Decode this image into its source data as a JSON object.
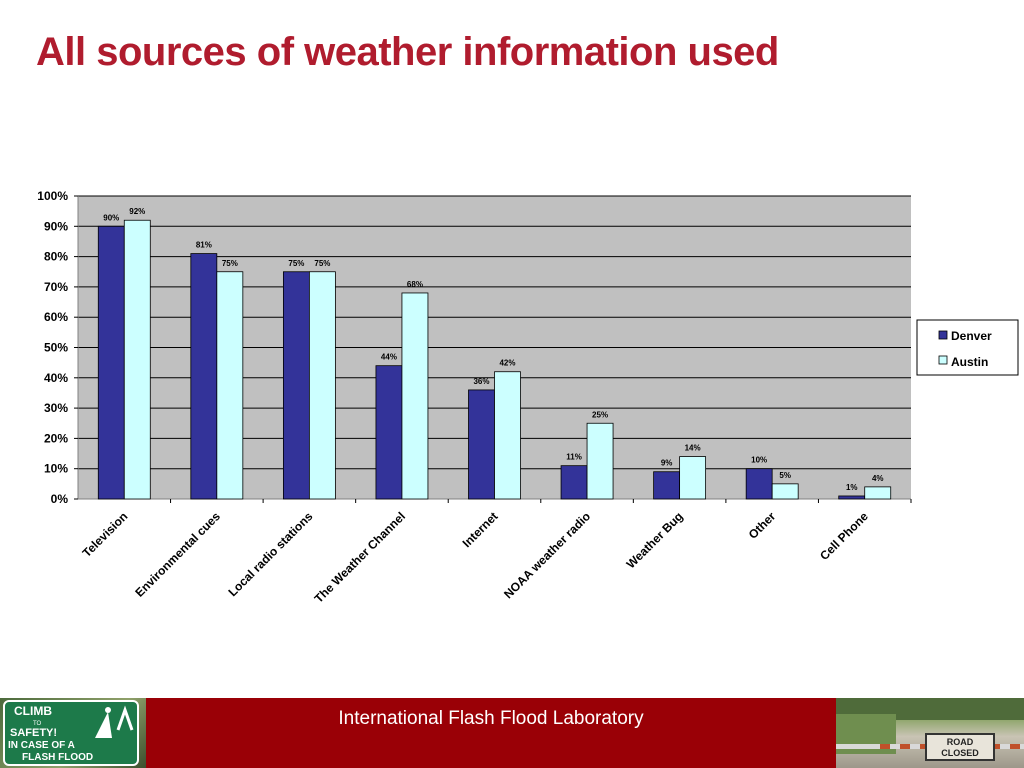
{
  "slide": {
    "title": "All sources of weather information used",
    "footer_text": "International Flash Flood Laboratory",
    "title_color": "#b01c2e",
    "footer_color": "#9a0006",
    "left_sign_text": [
      "CLIMB",
      "TO",
      "SAFETY!",
      "IN CASE OF A",
      "FLASH FLOOD"
    ],
    "right_sign_text": [
      "ROAD",
      "CLOSED"
    ]
  },
  "chart_data": {
    "type": "bar",
    "title": "",
    "xlabel": "",
    "ylabel": "",
    "ylim": [
      0,
      100
    ],
    "y_ticks": [
      "0%",
      "10%",
      "20%",
      "30%",
      "40%",
      "50%",
      "60%",
      "70%",
      "80%",
      "90%",
      "100%"
    ],
    "grid": true,
    "legend_position": "right",
    "plot_background": "#c0c0c0",
    "categories": [
      "Television",
      "Environmental cues",
      "Local radio stations",
      "The Weather Channel",
      "Internet",
      "NOAA weather radio",
      "Weather Bug",
      "Other",
      "Cell Phone"
    ],
    "series": [
      {
        "name": "Denver",
        "color": "#333399",
        "values": [
          90,
          81,
          75,
          44,
          36,
          11,
          9,
          10,
          1
        ],
        "labels": [
          "90%",
          "81%",
          "75%",
          "44%",
          "36%",
          "11%",
          "9%",
          "10%",
          "1%"
        ]
      },
      {
        "name": "Austin",
        "color": "#ccffff",
        "values": [
          92,
          75,
          75,
          68,
          42,
          25,
          14,
          5,
          4
        ],
        "labels": [
          "92%",
          "75%",
          "75%",
          "68%",
          "42%",
          "25%",
          "14%",
          "5%",
          "4%"
        ]
      }
    ]
  }
}
